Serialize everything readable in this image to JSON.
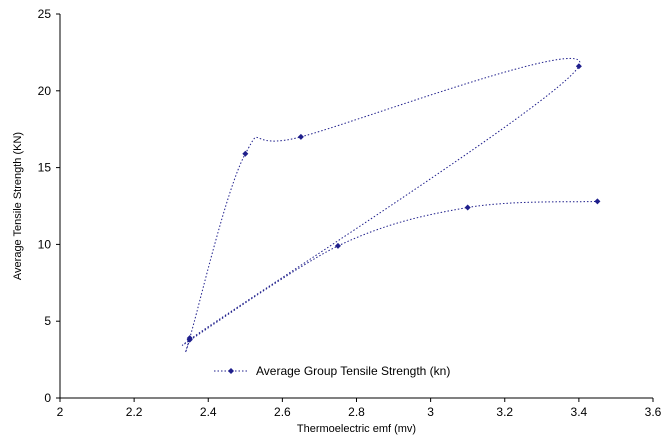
{
  "chart_data": {
    "type": "scatter",
    "title": "",
    "xlabel": "Thermoelectric emf (mv)",
    "ylabel": "Average Tensile Strength (KN)",
    "xlim": [
      2,
      3.6
    ],
    "ylim": [
      0,
      25
    ],
    "x_ticks": [
      "2",
      "2.2",
      "2.4",
      "2.6",
      "2.8",
      "3",
      "3.2",
      "3.4",
      "3.6"
    ],
    "y_ticks": [
      "0",
      "5",
      "10",
      "15",
      "20",
      "25"
    ],
    "grid": false,
    "legend": {
      "position": "bottom-center",
      "entries": [
        "Average Group Tensile Strength (kn)"
      ]
    },
    "series": [
      {
        "name": "Average Group Tensile Strength (kn)",
        "color": "#1f1f8c",
        "marker": "diamond",
        "line": "dotted-smoothed",
        "points": [
          {
            "x": 2.35,
            "y": 3.8
          },
          {
            "x": 2.35,
            "y": 3.9
          },
          {
            "x": 2.5,
            "y": 15.9
          },
          {
            "x": 2.65,
            "y": 17.0
          },
          {
            "x": 3.4,
            "y": 21.6
          },
          {
            "x": 2.35,
            "y": 3.8
          },
          {
            "x": 2.75,
            "y": 9.9
          },
          {
            "x": 3.1,
            "y": 12.4
          },
          {
            "x": 3.45,
            "y": 12.8
          }
        ]
      }
    ]
  }
}
